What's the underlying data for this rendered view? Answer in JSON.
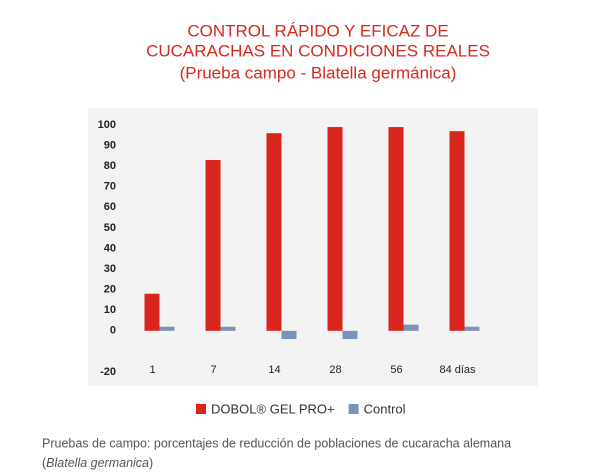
{
  "chart_data": {
    "type": "bar",
    "title_lines": [
      "CONTROL RÁPIDO Y EFICAZ DE",
      "CUCARACHAS EN CONDICIONES REALES",
      "(Prueba campo - Blatella germánica)"
    ],
    "categories": [
      "1",
      "7",
      "14",
      "28",
      "56",
      "84 días"
    ],
    "series": [
      {
        "name": "DOBOL® GEL PRO+",
        "color": "#d9261c",
        "values": [
          18,
          83,
          96,
          99,
          99,
          97
        ]
      },
      {
        "name": "Control",
        "color": "#7b93b8",
        "values": [
          2,
          2,
          -4,
          -4,
          3,
          2
        ]
      }
    ],
    "ylim": [
      -20,
      100
    ],
    "yticks": [
      100,
      90,
      80,
      70,
      60,
      50,
      40,
      30,
      20,
      10,
      0,
      -20
    ],
    "legend": "bottom",
    "caption": {
      "line1": "Pruebas de campo: porcentajes de reducción de poblaciones de cucaracha alemana",
      "open": "(",
      "italic": "Blatella germanica",
      "close": ")"
    }
  }
}
